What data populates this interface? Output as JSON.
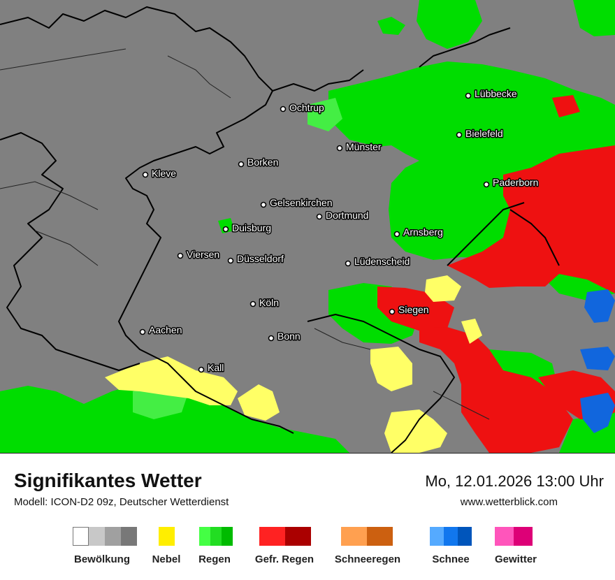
{
  "map": {
    "cities": [
      {
        "name": "Lübbecke"
      },
      {
        "name": "Ochtrup"
      },
      {
        "name": "Bielefeld"
      },
      {
        "name": "Münster"
      },
      {
        "name": "Borken"
      },
      {
        "name": "Kleve"
      },
      {
        "name": "Paderborn"
      },
      {
        "name": "Gelsenkirchen"
      },
      {
        "name": "Dortmund"
      },
      {
        "name": "Duisburg"
      },
      {
        "name": "Arnsberg"
      },
      {
        "name": "Viersen"
      },
      {
        "name": "Düsseldorf"
      },
      {
        "name": "Lüdenscheid"
      },
      {
        "name": "Köln"
      },
      {
        "name": "Siegen"
      },
      {
        "name": "Aachen"
      },
      {
        "name": "Bonn"
      },
      {
        "name": "Kall"
      }
    ],
    "colors": {
      "cloud": "#808080",
      "rain": "#00dd00",
      "rain_light": "#44ee44",
      "freezing_rain": "#ee1111",
      "fog": "#ffff66",
      "snow": "#1166dd",
      "border": "#000000"
    }
  },
  "footer": {
    "title": "Signifikantes Wetter",
    "model": "Modell: ICON-D2 09z, Deutscher Wetterdienst",
    "datetime": "Mo, 12.01.2026 13:00 Uhr",
    "website": "www.wetterblick.com"
  },
  "legend": [
    {
      "label": "Bewölkung",
      "colors": [
        "#ffffff",
        "#c8c8c8",
        "#a0a0a0",
        "#787878"
      ]
    },
    {
      "label": "Nebel",
      "colors": [
        "#ffee00"
      ]
    },
    {
      "label": "Regen",
      "colors": [
        "#44ff44",
        "#22dd22",
        "#00bb00"
      ]
    },
    {
      "label": "Gefr. Regen",
      "colors": [
        "#ff2222",
        "#aa0000"
      ]
    },
    {
      "label": "Schneeregen",
      "colors": [
        "#ffa050",
        "#cc6010"
      ]
    },
    {
      "label": "Schnee",
      "colors": [
        "#55aaff",
        "#1177ee",
        "#0055bb"
      ]
    },
    {
      "label": "Gewitter",
      "colors": [
        "#ff55bb",
        "#dd0077"
      ]
    }
  ]
}
